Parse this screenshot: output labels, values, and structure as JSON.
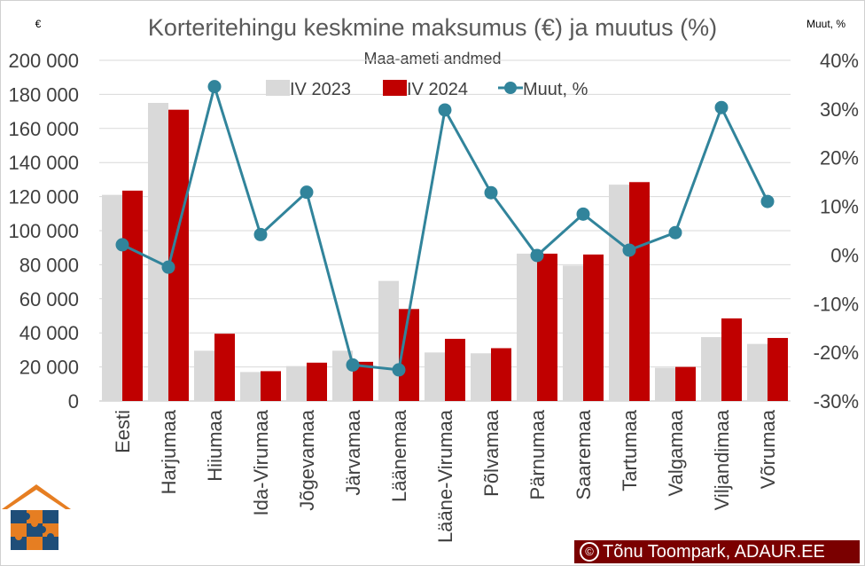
{
  "chart_data": {
    "type": "bar",
    "title": "Korteritehingu keskmine maksumus (€) ja muutus (%)",
    "subtitle": "Maa-ameti andmed",
    "y_left_unit": "€",
    "y_right_unit": "Muut, %",
    "categories": [
      "Eesti",
      "Harjumaa",
      "Hiiumaa",
      "Ida-Virumaa",
      "Jõgevamaa",
      "Järvamaa",
      "Läänemaa",
      "Lääne-Virumaa",
      "Põlvamaa",
      "Pärnumaa",
      "Saaremaa",
      "Tartumaa",
      "Valgamaa",
      "Viljandimaa",
      "Võrumaa"
    ],
    "series": [
      {
        "name": "IV 2023",
        "type": "bar",
        "color": "#d9d9d9",
        "axis": "left",
        "values": [
          121000,
          175000,
          29500,
          17000,
          20500,
          29500,
          70500,
          28500,
          28000,
          86500,
          79500,
          127000,
          19500,
          37500,
          33500
        ]
      },
      {
        "name": "IV 2024",
        "type": "bar",
        "color": "#c00000",
        "axis": "left",
        "values": [
          123500,
          171000,
          39500,
          17500,
          22500,
          23000,
          54000,
          36500,
          31000,
          86500,
          86000,
          128500,
          20000,
          48500,
          37000
        ]
      },
      {
        "name": "Muut, %",
        "type": "line",
        "color": "#31849b",
        "axis": "right",
        "values": [
          2.1,
          -2.5,
          34.6,
          4.2,
          12.9,
          -22.6,
          -23.6,
          29.8,
          12.8,
          -0.1,
          8.4,
          1.0,
          4.6,
          30.3,
          11.0
        ]
      }
    ],
    "ylim_left": [
      0,
      200000
    ],
    "yticks_left": [
      "0",
      "20 000",
      "40 000",
      "60 000",
      "80 000",
      "100 000",
      "120 000",
      "140 000",
      "160 000",
      "180 000",
      "200 000"
    ],
    "ylim_right": [
      -30,
      40
    ],
    "yticks_right": [
      "-30%",
      "-20%",
      "-10%",
      "0%",
      "10%",
      "20%",
      "30%",
      "40%"
    ],
    "grid": "horizontal",
    "legend": "top"
  },
  "colors": {
    "bar2023": "#d9d9d9",
    "bar2024": "#c00000",
    "line": "#31849b",
    "credit_bg": "#7a0000"
  },
  "credit": {
    "symbol": "©",
    "text": "Tõnu Toompark, ADAUR.EE"
  },
  "logo": {
    "icon": "house-puzzle-logo"
  }
}
